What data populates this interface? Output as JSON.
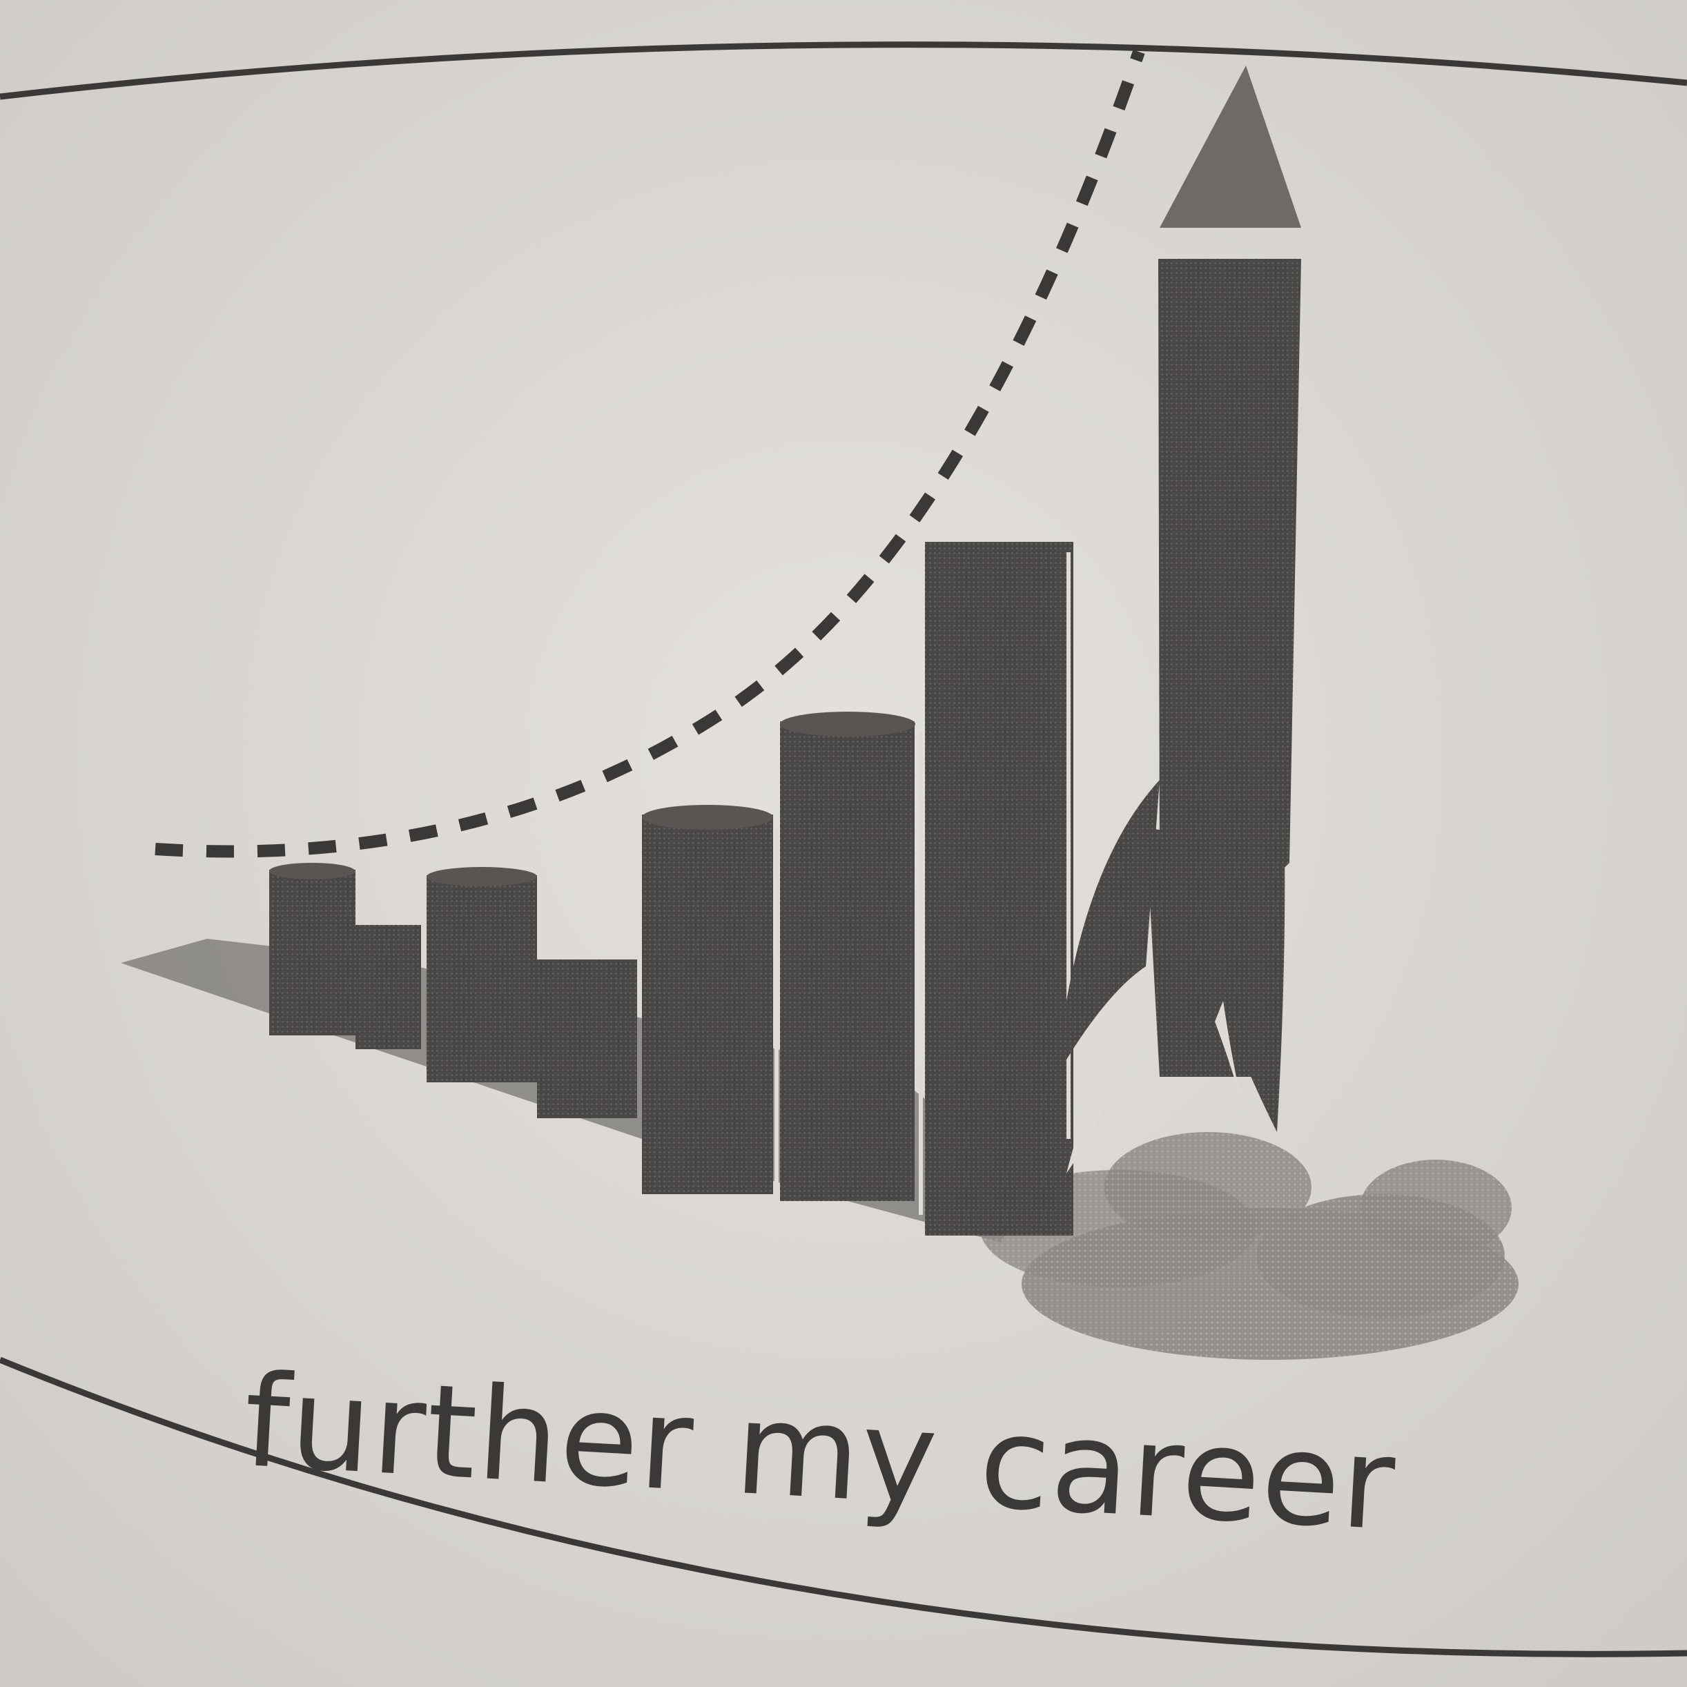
{
  "caption": "further my career",
  "colors": {
    "paper": "#dedbd6",
    "ink": "#3b3938",
    "bar": "#4a4846",
    "shadow": "#777472",
    "smoke": "#8c8986",
    "rocket_nose": "#6d6a67"
  },
  "icons": [
    "rocket-icon",
    "bar-graph-icon",
    "dashed-trajectory-icon",
    "smoke-cloud-icon"
  ]
}
